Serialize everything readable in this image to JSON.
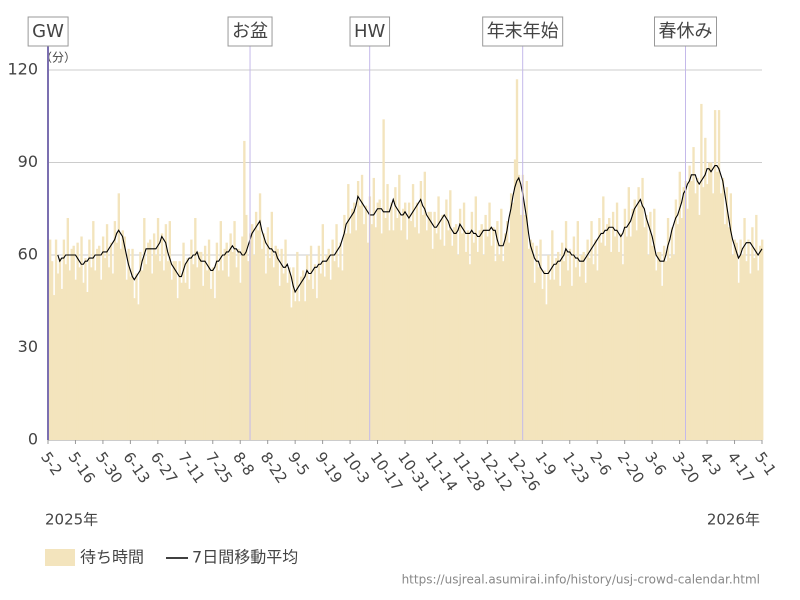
{
  "chart_data": {
    "type": "bar",
    "y_unit": "（分）",
    "ylim": [
      0,
      120
    ],
    "yticks": [
      0,
      30,
      60,
      90,
      120
    ],
    "grid": true,
    "year_start": "2025年",
    "year_end": "2026年",
    "source": "https://usjreal.asumirai.info/history/usj-crowd-calendar.html",
    "events": [
      {
        "label": "GW",
        "x": 0
      },
      {
        "label": "お盆",
        "x": 103
      },
      {
        "label": "HW",
        "x": 164
      },
      {
        "label": "年末年始",
        "x": 242
      },
      {
        "label": "春休み",
        "x": 325
      }
    ],
    "categories": [
      "5-2",
      null,
      null,
      null,
      null,
      null,
      null,
      null,
      null,
      null,
      null,
      null,
      null,
      null,
      "5-16",
      null,
      null,
      null,
      null,
      null,
      null,
      null,
      null,
      null,
      null,
      null,
      null,
      null,
      "5-30",
      null,
      null,
      null,
      null,
      null,
      null,
      null,
      null,
      null,
      null,
      null,
      null,
      null,
      "6-13",
      null,
      null,
      null,
      null,
      null,
      null,
      null,
      null,
      null,
      null,
      null,
      null,
      null,
      "6-27",
      null,
      null,
      null,
      null,
      null,
      null,
      null,
      null,
      null,
      null,
      null,
      null,
      null,
      "7-11",
      null,
      null,
      null,
      null,
      null,
      null,
      null,
      null,
      null,
      null,
      null,
      null,
      null,
      "7-25",
      null,
      null,
      null,
      null,
      null,
      null,
      null,
      null,
      null,
      null,
      null,
      null,
      null,
      "8-8",
      null,
      null,
      null,
      null,
      null,
      null,
      null,
      null,
      null,
      null,
      null,
      null,
      null,
      "8-22",
      null,
      null,
      null,
      null,
      null,
      null,
      null,
      null,
      null,
      null,
      null,
      null,
      null,
      "9-5",
      null,
      null,
      null,
      null,
      null,
      null,
      null,
      null,
      null,
      null,
      null,
      null,
      null,
      "9-19",
      null,
      null,
      null,
      null,
      null,
      null,
      null,
      null,
      null,
      null,
      null,
      null,
      null,
      "10-3",
      null,
      null,
      null,
      null,
      null,
      null,
      null,
      null,
      null,
      null,
      null,
      null,
      null,
      "10-17",
      null,
      null,
      null,
      null,
      null,
      null,
      null,
      null,
      null,
      null,
      null,
      null,
      null,
      "10-31",
      null,
      null,
      null,
      null,
      null,
      null,
      null,
      null,
      null,
      null,
      null,
      null,
      null,
      "11-14",
      null,
      null,
      null,
      null,
      null,
      null,
      null,
      null,
      null,
      null,
      null,
      null,
      null,
      "11-28",
      null,
      null,
      null,
      null,
      null,
      null,
      null,
      null,
      null,
      null,
      null,
      null,
      null,
      "12-12",
      null,
      null,
      null,
      null,
      null,
      null,
      null,
      null,
      null,
      null,
      null,
      null,
      null,
      "12-26",
      null,
      null,
      null,
      null,
      null,
      null,
      null,
      null,
      null,
      null,
      null,
      null,
      null,
      "1-9",
      null,
      null,
      null,
      null,
      null,
      null,
      null,
      null,
      null,
      null,
      null,
      null,
      null,
      "1-23",
      null,
      null,
      null,
      null,
      null,
      null,
      null,
      null,
      null,
      null,
      null,
      null,
      null,
      "2-6",
      null,
      null,
      null,
      null,
      null,
      null,
      null,
      null,
      null,
      null,
      null,
      null,
      null,
      "2-20",
      null,
      null,
      null,
      null,
      null,
      null,
      null,
      null,
      null,
      null,
      null,
      null,
      null,
      "3-6",
      null,
      null,
      null,
      null,
      null,
      null,
      null,
      null,
      null,
      null,
      null,
      null,
      null,
      "3-20",
      null,
      null,
      null,
      null,
      null,
      null,
      null,
      null,
      null,
      null,
      null,
      null,
      null,
      "4-3",
      null,
      null,
      null,
      null,
      null,
      null,
      null,
      null,
      null,
      null,
      null,
      null,
      null,
      "4-17",
      null,
      null,
      null,
      null,
      null,
      null,
      null,
      null,
      null,
      null,
      null,
      null,
      null,
      "5-1"
    ],
    "series": [
      {
        "name": "待ち時間",
        "type": "bar",
        "color": "#f3e4bd",
        "values": [
          49,
          65,
          58,
          47,
          65,
          54,
          59,
          49,
          65,
          57,
          72,
          55,
          62,
          63,
          52,
          64,
          56,
          66,
          51,
          59,
          48,
          65,
          56,
          71,
          55,
          62,
          63,
          52,
          66,
          59,
          70,
          56,
          64,
          54,
          71,
          64,
          80,
          62,
          68,
          66,
          52,
          62,
          53,
          62,
          46,
          54,
          44,
          61,
          55,
          72,
          57,
          64,
          65,
          54,
          67,
          60,
          72,
          58,
          67,
          55,
          70,
          58,
          71,
          52,
          58,
          58,
          46,
          58,
          51,
          64,
          51,
          59,
          49,
          65,
          57,
          72,
          56,
          61,
          61,
          50,
          63,
          55,
          65,
          49,
          56,
          46,
          64,
          55,
          71,
          55,
          62,
          64,
          53,
          67,
          61,
          71,
          56,
          62,
          51,
          66,
          97,
          73,
          58,
          67,
          70,
          60,
          74,
          68,
          80,
          62,
          67,
          54,
          69,
          59,
          74,
          56,
          63,
          62,
          50,
          62,
          54,
          65,
          51,
          56,
          43,
          56,
          45,
          61,
          45,
          53,
          55,
          45,
          60,
          52,
          63,
          49,
          57,
          46,
          63,
          54,
          70,
          53,
          60,
          62,
          52,
          65,
          58,
          70,
          56,
          64,
          55,
          73,
          67,
          83,
          67,
          75,
          77,
          68,
          84,
          76,
          86,
          70,
          76,
          64,
          79,
          70,
          85,
          69,
          77,
          78,
          67,
          104,
          72,
          83,
          68,
          77,
          68,
          82,
          72,
          86,
          68,
          75,
          77,
          65,
          77,
          71,
          83,
          69,
          77,
          67,
          84,
          73,
          87,
          68,
          74,
          74,
          62,
          74,
          67,
          79,
          65,
          73,
          63,
          78,
          68,
          81,
          63,
          69,
          70,
          60,
          75,
          67,
          77,
          61,
          68,
          57,
          74,
          64,
          79,
          61,
          68,
          70,
          60,
          73,
          66,
          77,
          63,
          69,
          58,
          71,
          60,
          75,
          58,
          67,
          71,
          64,
          80,
          77,
          91,
          117,
          86,
          73,
          86,
          73,
          84,
          62,
          65,
          64,
          51,
          63,
          56,
          65,
          49,
          55,
          44,
          60,
          52,
          68,
          52,
          59,
          61,
          50,
          64,
          58,
          71,
          55,
          62,
          50,
          66,
          56,
          71,
          53,
          60,
          61,
          51,
          65,
          59,
          71,
          57,
          65,
          55,
          72,
          64,
          79,
          63,
          70,
          72,
          61,
          74,
          66,
          77,
          61,
          67,
          57,
          75,
          66,
          82,
          66,
          75,
          78,
          68,
          82,
          76,
          85,
          69,
          73,
          60,
          74,
          63,
          75,
          55,
          61,
          61,
          50,
          63,
          58,
          72,
          59,
          69,
          60,
          78,
          70,
          87,
          72,
          82,
          84,
          75,
          89,
          84,
          95,
          80,
          85,
          73,
          109,
          82,
          98,
          83,
          90,
          90,
          80,
          107,
          87,
          107,
          80,
          85,
          70,
          82,
          69,
          80,
          60,
          65,
          64,
          51,
          65,
          60,
          72,
          58,
          65,
          54,
          69,
          59,
          73,
          55,
          63,
          65
        ]
      },
      {
        "name": "7日間移動平均",
        "type": "line",
        "color": "#000000",
        "values": [
          null,
          null,
          null,
          null,
          null,
          60,
          58,
          59,
          59,
          60,
          60,
          60,
          60,
          60,
          60,
          59,
          58,
          57,
          57,
          58,
          58,
          59,
          59,
          59,
          60,
          60,
          60,
          60,
          61,
          61,
          61,
          62,
          63,
          64,
          65,
          67,
          68,
          67,
          66,
          63,
          60,
          57,
          55,
          53,
          52,
          53,
          54,
          55,
          58,
          60,
          62,
          62,
          62,
          62,
          62,
          62,
          63,
          64,
          66,
          65,
          64,
          61,
          59,
          57,
          56,
          55,
          54,
          53,
          53,
          55,
          57,
          58,
          59,
          59,
          60,
          60,
          61,
          59,
          58,
          58,
          58,
          57,
          56,
          55,
          55,
          56,
          58,
          58,
          59,
          60,
          60,
          61,
          61,
          62,
          63,
          62,
          62,
          61,
          61,
          60,
          60,
          61,
          63,
          65,
          67,
          68,
          69,
          70,
          71,
          68,
          66,
          64,
          63,
          62,
          62,
          61,
          61,
          59,
          58,
          57,
          56,
          56,
          57,
          55,
          53,
          50,
          48,
          49,
          50,
          51,
          52,
          53,
          55,
          54,
          54,
          55,
          56,
          56,
          57,
          57,
          58,
          58,
          58,
          59,
          60,
          60,
          60,
          61,
          62,
          63,
          65,
          67,
          70,
          71,
          72,
          73,
          74,
          76,
          79,
          78,
          77,
          76,
          75,
          74,
          73,
          73,
          73,
          74,
          75,
          75,
          75,
          74,
          74,
          74,
          74,
          76,
          78,
          76,
          75,
          74,
          73,
          73,
          74,
          73,
          72,
          73,
          74,
          75,
          76,
          77,
          78,
          76,
          75,
          73,
          72,
          71,
          70,
          69,
          69,
          70,
          71,
          72,
          73,
          72,
          71,
          69,
          68,
          67,
          67,
          68,
          70,
          69,
          68,
          67,
          67,
          67,
          68,
          67,
          67,
          66,
          66,
          67,
          68,
          68,
          68,
          68,
          69,
          68,
          68,
          65,
          63,
          63,
          63,
          65,
          68,
          72,
          75,
          79,
          82,
          84,
          85,
          83,
          80,
          76,
          72,
          67,
          63,
          61,
          59,
          58,
          58,
          56,
          55,
          54,
          54,
          54,
          55,
          56,
          57,
          57,
          58,
          58,
          59,
          60,
          62,
          61,
          61,
          60,
          60,
          59,
          59,
          58,
          58,
          58,
          59,
          60,
          61,
          62,
          63,
          64,
          65,
          66,
          67,
          67,
          68,
          68,
          69,
          69,
          69,
          68,
          68,
          67,
          66,
          67,
          69,
          69,
          70,
          71,
          73,
          75,
          76,
          77,
          78,
          76,
          75,
          72,
          70,
          68,
          66,
          63,
          60,
          59,
          58,
          58,
          58,
          60,
          63,
          65,
          68,
          70,
          72,
          73,
          75,
          77,
          80,
          81,
          83,
          84,
          86,
          86,
          86,
          84,
          83,
          84,
          85,
          86,
          88,
          88,
          87,
          88,
          89,
          89,
          88,
          86,
          84,
          80,
          76,
          72,
          68,
          65,
          63,
          61,
          59,
          60,
          62,
          63,
          64,
          64,
          64,
          63,
          62,
          61,
          60,
          61,
          62
        ]
      }
    ]
  }
}
